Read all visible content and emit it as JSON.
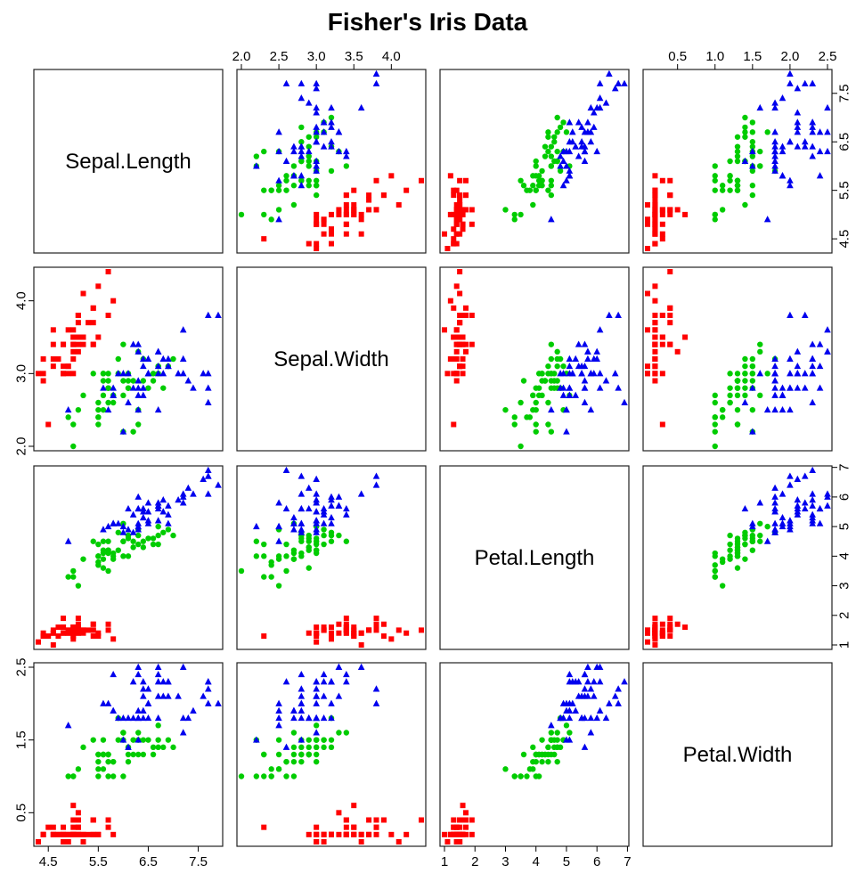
{
  "chart_data": {
    "type": "scatter",
    "title": "Fisher's Iris Data",
    "variables": [
      "Sepal.Length",
      "Sepal.Width",
      "Petal.Length",
      "Petal.Width"
    ],
    "ranges": [
      [
        4.3,
        7.9
      ],
      [
        2.0,
        4.4
      ],
      [
        1.0,
        6.9
      ],
      [
        0.1,
        2.5
      ]
    ],
    "ticks": [
      [
        "4.5",
        "5.5",
        "6.5",
        "7.5"
      ],
      [
        "2.0",
        "2.5",
        "3.0",
        "3.5",
        "4.0"
      ],
      [
        "1",
        "2",
        "3",
        "4",
        "5",
        "6",
        "7"
      ],
      [
        "0.5",
        "1.0",
        "1.5",
        "2.0",
        "2.5"
      ]
    ],
    "left_ticks": {
      "1": [
        "2.0",
        "3.0",
        "4.0"
      ],
      "3": [
        "0.5",
        "1.5",
        "2.5"
      ]
    },
    "right_ticks": {
      "0": [
        "4.5",
        "5.5",
        "6.5",
        "7.5"
      ],
      "2": [
        "1",
        "2",
        "3",
        "4",
        "5",
        "6",
        "7"
      ]
    },
    "grid": false,
    "series": [
      {
        "marker": "square",
        "color": "#ff0000",
        "points": [
          [
            5.1,
            3.5,
            1.4,
            0.2
          ],
          [
            4.9,
            3.0,
            1.4,
            0.2
          ],
          [
            4.7,
            3.2,
            1.3,
            0.2
          ],
          [
            4.6,
            3.1,
            1.5,
            0.2
          ],
          [
            5.0,
            3.6,
            1.4,
            0.2
          ],
          [
            5.4,
            3.9,
            1.7,
            0.4
          ],
          [
            4.6,
            3.4,
            1.4,
            0.3
          ],
          [
            5.0,
            3.4,
            1.5,
            0.2
          ],
          [
            4.4,
            2.9,
            1.4,
            0.2
          ],
          [
            4.9,
            3.1,
            1.5,
            0.1
          ],
          [
            5.4,
            3.7,
            1.5,
            0.2
          ],
          [
            4.8,
            3.4,
            1.6,
            0.2
          ],
          [
            4.8,
            3.0,
            1.4,
            0.1
          ],
          [
            4.3,
            3.0,
            1.1,
            0.1
          ],
          [
            5.8,
            4.0,
            1.2,
            0.2
          ],
          [
            5.7,
            4.4,
            1.5,
            0.4
          ],
          [
            5.4,
            3.9,
            1.3,
            0.4
          ],
          [
            5.1,
            3.5,
            1.4,
            0.3
          ],
          [
            5.7,
            3.8,
            1.7,
            0.3
          ],
          [
            5.1,
            3.8,
            1.5,
            0.3
          ],
          [
            5.4,
            3.4,
            1.7,
            0.2
          ],
          [
            5.1,
            3.7,
            1.5,
            0.4
          ],
          [
            4.6,
            3.6,
            1.0,
            0.2
          ],
          [
            5.1,
            3.3,
            1.7,
            0.5
          ],
          [
            4.8,
            3.4,
            1.9,
            0.2
          ],
          [
            5.0,
            3.0,
            1.6,
            0.2
          ],
          [
            5.0,
            3.4,
            1.6,
            0.4
          ],
          [
            5.2,
            3.5,
            1.5,
            0.2
          ],
          [
            5.2,
            3.4,
            1.4,
            0.2
          ],
          [
            4.7,
            3.2,
            1.6,
            0.2
          ],
          [
            4.8,
            3.1,
            1.6,
            0.2
          ],
          [
            5.4,
            3.4,
            1.5,
            0.4
          ],
          [
            5.2,
            4.1,
            1.5,
            0.1
          ],
          [
            5.5,
            4.2,
            1.4,
            0.2
          ],
          [
            4.9,
            3.1,
            1.5,
            0.2
          ],
          [
            5.0,
            3.2,
            1.2,
            0.2
          ],
          [
            5.5,
            3.5,
            1.3,
            0.2
          ],
          [
            4.9,
            3.6,
            1.4,
            0.1
          ],
          [
            4.4,
            3.0,
            1.3,
            0.2
          ],
          [
            5.1,
            3.4,
            1.5,
            0.2
          ],
          [
            5.0,
            3.5,
            1.3,
            0.3
          ],
          [
            4.5,
            2.3,
            1.3,
            0.3
          ],
          [
            4.4,
            3.2,
            1.3,
            0.2
          ],
          [
            5.0,
            3.5,
            1.6,
            0.6
          ],
          [
            5.1,
            3.8,
            1.9,
            0.4
          ],
          [
            4.8,
            3.0,
            1.4,
            0.3
          ],
          [
            5.1,
            3.8,
            1.6,
            0.2
          ],
          [
            4.6,
            3.2,
            1.4,
            0.2
          ],
          [
            5.3,
            3.7,
            1.5,
            0.2
          ],
          [
            5.0,
            3.3,
            1.4,
            0.2
          ]
        ]
      },
      {
        "marker": "circle",
        "color": "#00cc00",
        "points": [
          [
            7.0,
            3.2,
            4.7,
            1.4
          ],
          [
            6.4,
            3.2,
            4.5,
            1.5
          ],
          [
            6.9,
            3.1,
            4.9,
            1.5
          ],
          [
            5.5,
            2.3,
            4.0,
            1.3
          ],
          [
            6.5,
            2.8,
            4.6,
            1.5
          ],
          [
            5.7,
            2.8,
            4.5,
            1.3
          ],
          [
            6.3,
            3.3,
            4.7,
            1.6
          ],
          [
            4.9,
            2.4,
            3.3,
            1.0
          ],
          [
            6.6,
            2.9,
            4.6,
            1.3
          ],
          [
            5.2,
            2.7,
            3.9,
            1.4
          ],
          [
            5.0,
            2.0,
            3.5,
            1.0
          ],
          [
            5.9,
            3.0,
            4.2,
            1.5
          ],
          [
            6.0,
            2.2,
            4.0,
            1.0
          ],
          [
            6.1,
            2.9,
            4.7,
            1.4
          ],
          [
            5.6,
            2.9,
            3.6,
            1.3
          ],
          [
            6.7,
            3.1,
            4.4,
            1.4
          ],
          [
            5.6,
            3.0,
            4.5,
            1.5
          ],
          [
            5.8,
            2.7,
            4.1,
            1.0
          ],
          [
            6.2,
            2.2,
            4.5,
            1.5
          ],
          [
            5.6,
            2.5,
            3.9,
            1.1
          ],
          [
            5.9,
            3.2,
            4.8,
            1.8
          ],
          [
            6.1,
            2.8,
            4.0,
            1.3
          ],
          [
            6.3,
            2.5,
            4.9,
            1.5
          ],
          [
            6.1,
            2.8,
            4.7,
            1.2
          ],
          [
            6.4,
            2.9,
            4.3,
            1.3
          ],
          [
            6.6,
            3.0,
            4.4,
            1.4
          ],
          [
            6.8,
            2.8,
            4.8,
            1.4
          ],
          [
            6.7,
            3.0,
            5.0,
            1.7
          ],
          [
            6.0,
            2.9,
            4.5,
            1.5
          ],
          [
            5.7,
            2.6,
            3.5,
            1.0
          ],
          [
            5.5,
            2.4,
            3.8,
            1.1
          ],
          [
            5.5,
            2.4,
            3.7,
            1.0
          ],
          [
            5.8,
            2.7,
            3.9,
            1.2
          ],
          [
            6.0,
            2.7,
            5.1,
            1.6
          ],
          [
            5.4,
            3.0,
            4.5,
            1.5
          ],
          [
            6.0,
            3.4,
            4.5,
            1.6
          ],
          [
            6.7,
            3.1,
            4.7,
            1.5
          ],
          [
            6.3,
            2.3,
            4.4,
            1.3
          ],
          [
            5.6,
            3.0,
            4.1,
            1.3
          ],
          [
            5.5,
            2.5,
            4.0,
            1.3
          ],
          [
            5.5,
            2.6,
            4.4,
            1.2
          ],
          [
            6.1,
            3.0,
            4.6,
            1.4
          ],
          [
            5.8,
            2.6,
            4.0,
            1.2
          ],
          [
            5.0,
            2.3,
            3.3,
            1.0
          ],
          [
            5.6,
            2.7,
            4.2,
            1.3
          ],
          [
            5.7,
            3.0,
            4.2,
            1.2
          ],
          [
            5.7,
            2.9,
            4.2,
            1.3
          ],
          [
            6.2,
            2.9,
            4.3,
            1.3
          ],
          [
            5.1,
            2.5,
            3.0,
            1.1
          ],
          [
            5.7,
            2.8,
            4.1,
            1.3
          ]
        ]
      },
      {
        "marker": "triangle",
        "color": "#0000ee",
        "points": [
          [
            6.3,
            3.3,
            6.0,
            2.5
          ],
          [
            5.8,
            2.7,
            5.1,
            1.9
          ],
          [
            7.1,
            3.0,
            5.9,
            2.1
          ],
          [
            6.3,
            2.9,
            5.6,
            1.8
          ],
          [
            6.5,
            3.0,
            5.8,
            2.2
          ],
          [
            7.6,
            3.0,
            6.6,
            2.1
          ],
          [
            4.9,
            2.5,
            4.5,
            1.7
          ],
          [
            7.3,
            2.9,
            6.3,
            1.8
          ],
          [
            6.7,
            2.5,
            5.8,
            1.8
          ],
          [
            7.2,
            3.6,
            6.1,
            2.5
          ],
          [
            6.5,
            3.2,
            5.1,
            2.0
          ],
          [
            6.4,
            2.7,
            5.3,
            1.9
          ],
          [
            6.8,
            3.0,
            5.5,
            2.1
          ],
          [
            5.7,
            2.5,
            5.0,
            2.0
          ],
          [
            5.8,
            2.8,
            5.1,
            2.4
          ],
          [
            6.4,
            3.2,
            5.3,
            2.3
          ],
          [
            6.5,
            3.0,
            5.5,
            1.8
          ],
          [
            7.7,
            3.8,
            6.7,
            2.2
          ],
          [
            7.7,
            2.6,
            6.9,
            2.3
          ],
          [
            6.0,
            2.2,
            5.0,
            1.5
          ],
          [
            6.9,
            3.2,
            5.7,
            2.3
          ],
          [
            5.6,
            2.8,
            4.9,
            2.0
          ],
          [
            7.7,
            2.8,
            6.7,
            2.0
          ],
          [
            6.3,
            2.7,
            4.9,
            1.8
          ],
          [
            6.7,
            3.3,
            5.7,
            2.1
          ],
          [
            7.2,
            3.2,
            6.0,
            1.8
          ],
          [
            6.2,
            2.8,
            4.8,
            1.8
          ],
          [
            6.1,
            3.0,
            4.9,
            1.8
          ],
          [
            6.4,
            2.8,
            5.6,
            2.1
          ],
          [
            7.2,
            3.0,
            5.8,
            1.6
          ],
          [
            7.4,
            2.8,
            6.1,
            1.9
          ],
          [
            7.9,
            3.8,
            6.4,
            2.0
          ],
          [
            6.4,
            2.8,
            5.6,
            2.2
          ],
          [
            6.3,
            2.8,
            5.1,
            1.5
          ],
          [
            6.1,
            2.6,
            5.6,
            1.4
          ],
          [
            7.7,
            3.0,
            6.1,
            2.3
          ],
          [
            6.3,
            3.4,
            5.6,
            2.4
          ],
          [
            6.4,
            3.1,
            5.5,
            1.8
          ],
          [
            6.0,
            3.0,
            4.8,
            1.8
          ],
          [
            6.9,
            3.1,
            5.4,
            2.1
          ],
          [
            6.7,
            3.1,
            5.6,
            2.4
          ],
          [
            6.9,
            3.1,
            5.1,
            2.3
          ],
          [
            5.8,
            2.7,
            5.1,
            1.9
          ],
          [
            6.8,
            3.2,
            5.9,
            2.3
          ],
          [
            6.7,
            3.3,
            5.7,
            2.5
          ],
          [
            6.7,
            3.0,
            5.2,
            2.3
          ],
          [
            6.3,
            2.5,
            5.0,
            1.9
          ],
          [
            6.5,
            3.0,
            5.2,
            2.0
          ],
          [
            6.2,
            3.4,
            5.4,
            2.3
          ],
          [
            5.9,
            3.0,
            5.1,
            1.8
          ]
        ]
      }
    ]
  }
}
